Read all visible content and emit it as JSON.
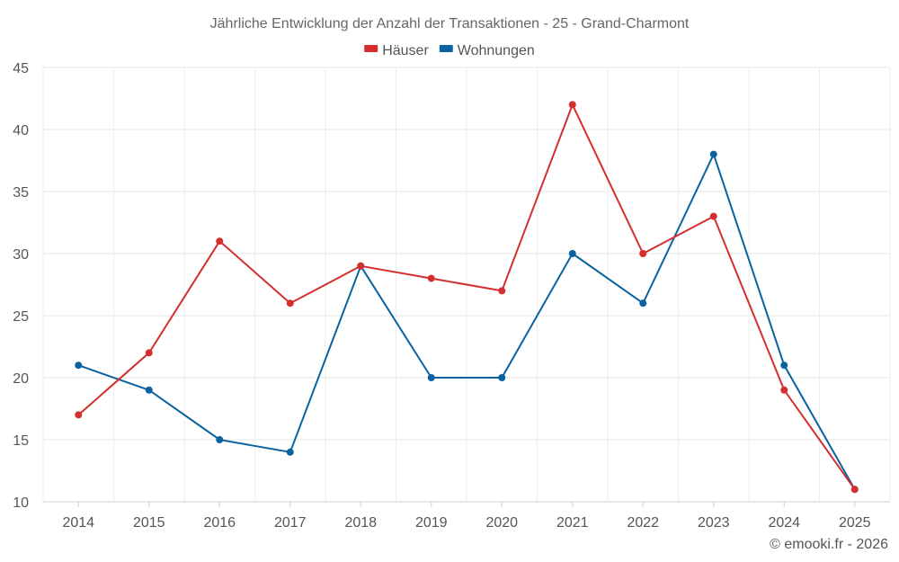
{
  "chart_data": {
    "type": "line",
    "title": "Jährliche Entwicklung der Anzahl der Transaktionen - 25 - Grand-Charmont",
    "xlabel": "",
    "ylabel": "",
    "categories": [
      "2014",
      "2015",
      "2016",
      "2017",
      "2018",
      "2019",
      "2020",
      "2021",
      "2022",
      "2023",
      "2024",
      "2025"
    ],
    "ylim": [
      10,
      45
    ],
    "yticks": [
      10,
      15,
      20,
      25,
      30,
      35,
      40,
      45
    ],
    "grid": true,
    "legend_position": "top-center",
    "series": [
      {
        "name": "Häuser",
        "color": "#d32f2f",
        "values": [
          17,
          22,
          31,
          26,
          29,
          28,
          27,
          42,
          30,
          33,
          19,
          11
        ]
      },
      {
        "name": "Wohnungen",
        "color": "#0a62a0",
        "values": [
          21,
          19,
          15,
          14,
          29,
          20,
          20,
          30,
          26,
          38,
          21,
          11
        ]
      }
    ]
  },
  "credit": "© emooki.fr - 2026"
}
